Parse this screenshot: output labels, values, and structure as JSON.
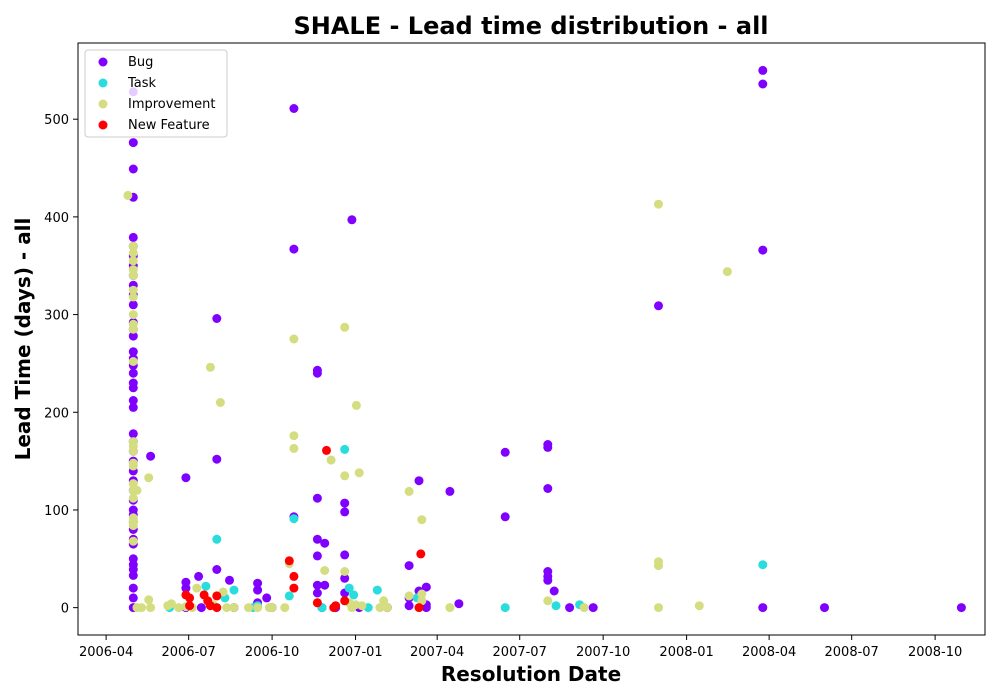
{
  "chart_data": {
    "type": "scatter",
    "title": "SHALE - Lead time distribution - all",
    "xlabel": "Resolution Date",
    "ylabel": "Lead Time (days) - all",
    "x_ticks": [
      "2006-04",
      "2006-07",
      "2006-10",
      "2007-01",
      "2007-04",
      "2007-07",
      "2007-10",
      "2008-01",
      "2008-04",
      "2008-07",
      "2008-10"
    ],
    "y_ticks": [
      0,
      100,
      200,
      300,
      400,
      500
    ],
    "xlim": [
      "2006-03-01",
      "2008-11-25"
    ],
    "ylim": [
      -28,
      578
    ],
    "grid": false,
    "legend_position": "top-left",
    "series": [
      {
        "name": "Bug",
        "color": "#8000ff",
        "points": [
          [
            "2006-05-01",
            528
          ],
          [
            "2006-05-01",
            476
          ],
          [
            "2006-05-01",
            449
          ],
          [
            "2006-05-01",
            420
          ],
          [
            "2006-05-01",
            379
          ],
          [
            "2006-05-01",
            370
          ],
          [
            "2006-05-01",
            360
          ],
          [
            "2006-05-01",
            350
          ],
          [
            "2006-05-01",
            340
          ],
          [
            "2006-05-01",
            330
          ],
          [
            "2006-05-01",
            320
          ],
          [
            "2006-05-01",
            310
          ],
          [
            "2006-05-01",
            292
          ],
          [
            "2006-05-01",
            285
          ],
          [
            "2006-05-01",
            278
          ],
          [
            "2006-05-01",
            262
          ],
          [
            "2006-05-01",
            255
          ],
          [
            "2006-05-01",
            248
          ],
          [
            "2006-05-01",
            240
          ],
          [
            "2006-05-01",
            230
          ],
          [
            "2006-05-01",
            225
          ],
          [
            "2006-05-01",
            212
          ],
          [
            "2006-05-01",
            205
          ],
          [
            "2006-05-01",
            178
          ],
          [
            "2006-05-01",
            170
          ],
          [
            "2006-05-01",
            160
          ],
          [
            "2006-05-01",
            150
          ],
          [
            "2006-05-01",
            140
          ],
          [
            "2006-05-01",
            130
          ],
          [
            "2006-05-01",
            120
          ],
          [
            "2006-05-01",
            110
          ],
          [
            "2006-05-01",
            100
          ],
          [
            "2006-05-01",
            95
          ],
          [
            "2006-05-01",
            88
          ],
          [
            "2006-05-01",
            80
          ],
          [
            "2006-05-01",
            70
          ],
          [
            "2006-05-01",
            65
          ],
          [
            "2006-05-01",
            50
          ],
          [
            "2006-05-01",
            44
          ],
          [
            "2006-05-01",
            39
          ],
          [
            "2006-05-01",
            33
          ],
          [
            "2006-05-01",
            20
          ],
          [
            "2006-05-01",
            10
          ],
          [
            "2006-05-01",
            0
          ],
          [
            "2006-05-20",
            155
          ],
          [
            "2006-06-28",
            133
          ],
          [
            "2006-06-28",
            26
          ],
          [
            "2006-06-28",
            20
          ],
          [
            "2006-07-12",
            32
          ],
          [
            "2006-08-01",
            296
          ],
          [
            "2006-08-01",
            152
          ],
          [
            "2006-08-01",
            39
          ],
          [
            "2006-08-15",
            28
          ],
          [
            "2006-09-15",
            25
          ],
          [
            "2006-09-15",
            18
          ],
          [
            "2006-09-15",
            5
          ],
          [
            "2006-09-25",
            10
          ],
          [
            "2006-10-25",
            511
          ],
          [
            "2006-10-25",
            367
          ],
          [
            "2006-10-25",
            93
          ],
          [
            "2006-11-20",
            243
          ],
          [
            "2006-11-20",
            240
          ],
          [
            "2006-11-20",
            112
          ],
          [
            "2006-11-20",
            70
          ],
          [
            "2006-11-20",
            53
          ],
          [
            "2006-11-20",
            23
          ],
          [
            "2006-11-20",
            15
          ],
          [
            "2006-11-28",
            66
          ],
          [
            "2006-11-28",
            23
          ],
          [
            "2006-12-20",
            107
          ],
          [
            "2006-12-20",
            98
          ],
          [
            "2006-12-20",
            54
          ],
          [
            "2006-12-20",
            30
          ],
          [
            "2006-12-20",
            15
          ],
          [
            "2006-12-28",
            397
          ],
          [
            "2007-03-01",
            43
          ],
          [
            "2007-03-01",
            10
          ],
          [
            "2007-03-01",
            2
          ],
          [
            "2007-03-12",
            130
          ],
          [
            "2007-03-12",
            17
          ],
          [
            "2007-03-20",
            21
          ],
          [
            "2007-03-20",
            3
          ],
          [
            "2007-04-15",
            119
          ],
          [
            "2007-04-25",
            4
          ],
          [
            "2007-06-15",
            159
          ],
          [
            "2007-06-15",
            93
          ],
          [
            "2007-08-01",
            167
          ],
          [
            "2007-08-01",
            164
          ],
          [
            "2007-08-01",
            122
          ],
          [
            "2007-08-01",
            37
          ],
          [
            "2007-08-01",
            32
          ],
          [
            "2007-08-01",
            28
          ],
          [
            "2007-08-08",
            17
          ],
          [
            "2007-08-25",
            0
          ],
          [
            "2007-09-20",
            0
          ],
          [
            "2007-12-01",
            309
          ],
          [
            "2008-03-25",
            550
          ],
          [
            "2008-03-25",
            536
          ],
          [
            "2008-03-25",
            366
          ],
          [
            "2008-03-25",
            0
          ],
          [
            "2008-06-01",
            0
          ],
          [
            "2008-10-30",
            0
          ],
          [
            "2006-06-28",
            0
          ],
          [
            "2006-07-15",
            0
          ],
          [
            "2006-08-20",
            0
          ],
          [
            "2006-10-01",
            0
          ],
          [
            "2006-11-25",
            0
          ],
          [
            "2006-12-10",
            0
          ],
          [
            "2007-01-05",
            0
          ],
          [
            "2007-02-05",
            0
          ],
          [
            "2007-03-20",
            0
          ]
        ]
      },
      {
        "name": "Task",
        "color": "#2adddd",
        "points": [
          [
            "2006-06-10",
            0
          ],
          [
            "2006-07-20",
            22
          ],
          [
            "2006-08-01",
            70
          ],
          [
            "2006-08-10",
            10
          ],
          [
            "2006-08-20",
            18
          ],
          [
            "2006-09-10",
            0
          ],
          [
            "2006-09-15",
            2
          ],
          [
            "2006-10-20",
            12
          ],
          [
            "2006-10-25",
            91
          ],
          [
            "2006-11-25",
            0
          ],
          [
            "2006-12-20",
            162
          ],
          [
            "2006-12-25",
            20
          ],
          [
            "2006-12-30",
            13
          ],
          [
            "2007-01-15",
            0
          ],
          [
            "2007-01-25",
            18
          ],
          [
            "2007-03-10",
            10
          ],
          [
            "2007-06-15",
            0
          ],
          [
            "2007-08-10",
            2
          ],
          [
            "2007-09-05",
            3
          ],
          [
            "2008-03-25",
            44
          ]
        ]
      },
      {
        "name": "Improvement",
        "color": "#d4dd80",
        "points": [
          [
            "2006-04-25",
            422
          ],
          [
            "2006-05-01",
            370
          ],
          [
            "2006-05-01",
            363
          ],
          [
            "2006-05-01",
            355
          ],
          [
            "2006-05-01",
            346
          ],
          [
            "2006-05-01",
            340
          ],
          [
            "2006-05-01",
            325
          ],
          [
            "2006-05-01",
            318
          ],
          [
            "2006-05-01",
            300
          ],
          [
            "2006-05-01",
            290
          ],
          [
            "2006-05-01",
            285
          ],
          [
            "2006-05-01",
            252
          ],
          [
            "2006-05-01",
            170
          ],
          [
            "2006-05-01",
            165
          ],
          [
            "2006-05-01",
            160
          ],
          [
            "2006-05-01",
            148
          ],
          [
            "2006-05-01",
            145
          ],
          [
            "2006-05-01",
            127
          ],
          [
            "2006-05-01",
            120
          ],
          [
            "2006-05-01",
            112
          ],
          [
            "2006-05-01",
            92
          ],
          [
            "2006-05-01",
            88
          ],
          [
            "2006-05-01",
            84
          ],
          [
            "2006-05-01",
            68
          ],
          [
            "2006-05-05",
            120
          ],
          [
            "2006-05-05",
            0
          ],
          [
            "2006-05-10",
            0
          ],
          [
            "2006-05-18",
            133
          ],
          [
            "2006-05-18",
            8
          ],
          [
            "2006-05-20",
            0
          ],
          [
            "2006-06-08",
            2
          ],
          [
            "2006-06-12",
            4
          ],
          [
            "2006-06-20",
            0
          ],
          [
            "2006-06-28",
            1
          ],
          [
            "2006-07-05",
            0
          ],
          [
            "2006-07-10",
            20
          ],
          [
            "2006-07-25",
            246
          ],
          [
            "2006-07-28",
            3
          ],
          [
            "2006-08-05",
            210
          ],
          [
            "2006-08-08",
            16
          ],
          [
            "2006-08-12",
            0
          ],
          [
            "2006-08-20",
            0
          ],
          [
            "2006-09-05",
            0
          ],
          [
            "2006-09-15",
            0
          ],
          [
            "2006-09-28",
            0
          ],
          [
            "2006-10-01",
            0
          ],
          [
            "2006-10-15",
            0
          ],
          [
            "2006-10-20",
            45
          ],
          [
            "2006-10-25",
            275
          ],
          [
            "2006-10-25",
            176
          ],
          [
            "2006-10-25",
            163
          ],
          [
            "2006-11-20",
            5
          ],
          [
            "2006-11-28",
            38
          ],
          [
            "2006-12-05",
            151
          ],
          [
            "2006-12-20",
            287
          ],
          [
            "2006-12-20",
            135
          ],
          [
            "2006-12-20",
            37
          ],
          [
            "2006-12-25",
            5
          ],
          [
            "2006-12-28",
            0
          ],
          [
            "2007-01-01",
            3
          ],
          [
            "2007-01-02",
            207
          ],
          [
            "2007-01-05",
            138
          ],
          [
            "2007-01-08",
            2
          ],
          [
            "2007-01-28",
            0
          ],
          [
            "2007-02-01",
            7
          ],
          [
            "2007-02-05",
            0
          ],
          [
            "2007-03-01",
            119
          ],
          [
            "2007-03-01",
            12
          ],
          [
            "2007-03-15",
            90
          ],
          [
            "2007-03-15",
            14
          ],
          [
            "2007-03-15",
            7
          ],
          [
            "2007-04-15",
            0
          ],
          [
            "2007-08-01",
            7
          ],
          [
            "2007-09-10",
            0
          ],
          [
            "2007-12-01",
            413
          ],
          [
            "2007-12-01",
            47
          ],
          [
            "2007-12-01",
            43
          ],
          [
            "2007-12-01",
            0
          ],
          [
            "2008-01-15",
            2
          ],
          [
            "2008-02-15",
            344
          ]
        ]
      },
      {
        "name": "New Feature",
        "color": "#ff0000",
        "points": [
          [
            "2006-06-28",
            13
          ],
          [
            "2006-07-02",
            10
          ],
          [
            "2006-07-02",
            2
          ],
          [
            "2006-07-18",
            13
          ],
          [
            "2006-07-22",
            7
          ],
          [
            "2006-07-25",
            2
          ],
          [
            "2006-08-01",
            12
          ],
          [
            "2006-08-01",
            0
          ],
          [
            "2006-10-20",
            48
          ],
          [
            "2006-10-25",
            32
          ],
          [
            "2006-10-25",
            20
          ],
          [
            "2006-11-20",
            5
          ],
          [
            "2006-11-30",
            161
          ],
          [
            "2006-12-08",
            0
          ],
          [
            "2006-12-10",
            2
          ],
          [
            "2006-12-20",
            7
          ],
          [
            "2007-03-12",
            0
          ],
          [
            "2007-03-14",
            55
          ]
        ]
      }
    ]
  }
}
